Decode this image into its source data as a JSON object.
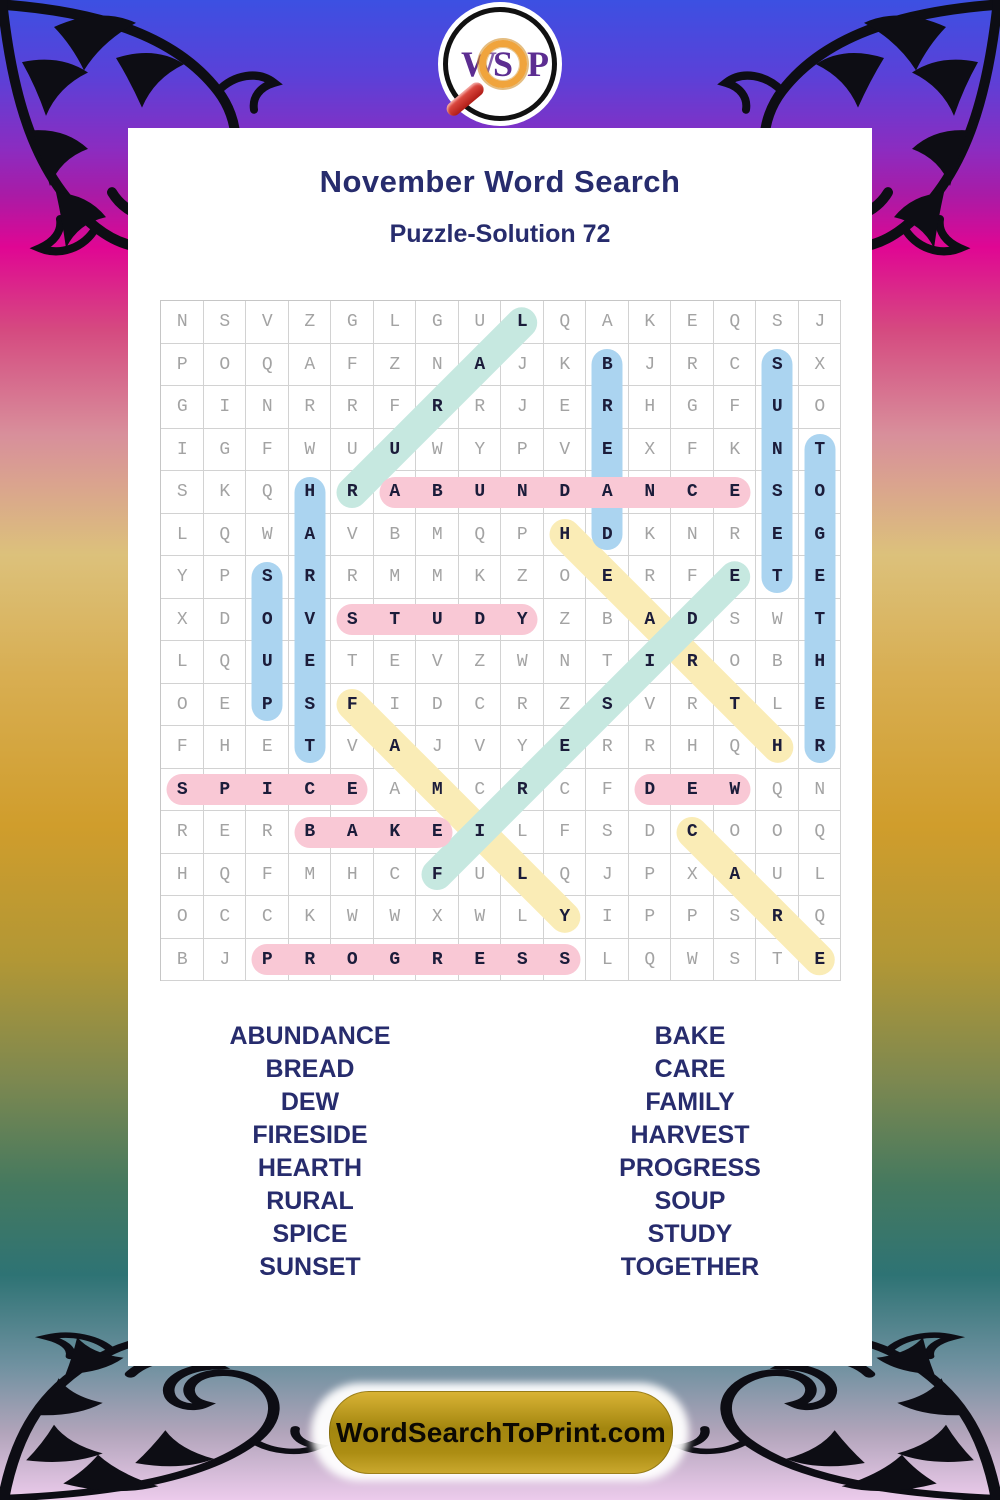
{
  "header": {
    "title": "November Word Search",
    "subtitle": "Puzzle-Solution 72"
  },
  "logo": {
    "letter_w": "W",
    "letter_s": "S",
    "letter_p": "P"
  },
  "grid": {
    "size": 16,
    "rows": [
      "NSVZGLGULQAKEQSJ",
      "POQAFZNAJKBJRCSX",
      "GINRRFRRJERHGFUO",
      "IGFWUUWYPVEXFKNT",
      "SKQHRABUNDANCESO",
      "LQWAVBMQPHDKNREG",
      "YPSRRMMKZOERFETE",
      "XDOVSTUDYZBADSWT",
      "LQUETEVZWNTIROBH",
      "OEPSFIDCRZSVRTLE",
      "FHETVAJVYERRHQHR",
      "SPICEAMCRCFDEWQN",
      "RERBAKEILFSDCOOQ",
      "HQFMHCFULQJPXAUL",
      "OCCKWWXWLYIPPSRQ",
      "BJPROGRESSLQWSTE"
    ]
  },
  "highlight_colors": {
    "pink": "#f9c8d5",
    "blue": "#abd4f0",
    "teal": "#c6e8e0",
    "yellow": "#faecb6"
  },
  "paint_order": [
    "yellow",
    "teal",
    "blue",
    "pink"
  ],
  "solutions": [
    {
      "word": "ABUNDANCE",
      "start": [
        5,
        6
      ],
      "end": [
        5,
        14
      ],
      "color_key": "pink"
    },
    {
      "word": "BAKE",
      "start": [
        13,
        4
      ],
      "end": [
        13,
        7
      ],
      "color_key": "pink"
    },
    {
      "word": "BREAD",
      "start": [
        2,
        11
      ],
      "end": [
        6,
        11
      ],
      "color_key": "blue"
    },
    {
      "word": "CARE",
      "start": [
        13,
        13
      ],
      "end": [
        16,
        16
      ],
      "color_key": "yellow"
    },
    {
      "word": "DEW",
      "start": [
        12,
        12
      ],
      "end": [
        12,
        14
      ],
      "color_key": "pink"
    },
    {
      "word": "FAMILY",
      "start": [
        10,
        5
      ],
      "end": [
        15,
        10
      ],
      "color_key": "yellow"
    },
    {
      "word": "FIRESIDE",
      "start": [
        14,
        7
      ],
      "end": [
        7,
        14
      ],
      "color_key": "teal"
    },
    {
      "word": "HARVEST",
      "start": [
        5,
        4
      ],
      "end": [
        11,
        4
      ],
      "color_key": "blue"
    },
    {
      "word": "HEARTH",
      "start": [
        6,
        10
      ],
      "end": [
        11,
        15
      ],
      "color_key": "yellow"
    },
    {
      "word": "PROGRESS",
      "start": [
        16,
        3
      ],
      "end": [
        16,
        10
      ],
      "color_key": "pink"
    },
    {
      "word": "RURAL",
      "start": [
        5,
        5
      ],
      "end": [
        1,
        9
      ],
      "color_key": "teal"
    },
    {
      "word": "SOUP",
      "start": [
        7,
        3
      ],
      "end": [
        10,
        3
      ],
      "color_key": "blue"
    },
    {
      "word": "SPICE",
      "start": [
        12,
        1
      ],
      "end": [
        12,
        5
      ],
      "color_key": "pink"
    },
    {
      "word": "STUDY",
      "start": [
        8,
        5
      ],
      "end": [
        8,
        9
      ],
      "color_key": "pink"
    },
    {
      "word": "SUNSET",
      "start": [
        2,
        15
      ],
      "end": [
        7,
        15
      ],
      "color_key": "blue"
    },
    {
      "word": "TOGETHER",
      "start": [
        4,
        16
      ],
      "end": [
        11,
        16
      ],
      "color_key": "blue"
    }
  ],
  "word_list": {
    "left": [
      "ABUNDANCE",
      "BREAD",
      "DEW",
      "FIRESIDE",
      "HEARTH",
      "RURAL",
      "SPICE",
      "SUNSET"
    ],
    "right": [
      "BAKE",
      "CARE",
      "FAMILY",
      "HARVEST",
      "PROGRESS",
      "SOUP",
      "STUDY",
      "TOGETHER"
    ]
  },
  "footer": {
    "site_label": "WordSearchToPrint.com"
  },
  "colors": {
    "title_text": "#272c6d",
    "letter_gray": "#a3a3a3",
    "letter_solved": "#1b1c3a",
    "footer_gold": "#a3860f"
  }
}
